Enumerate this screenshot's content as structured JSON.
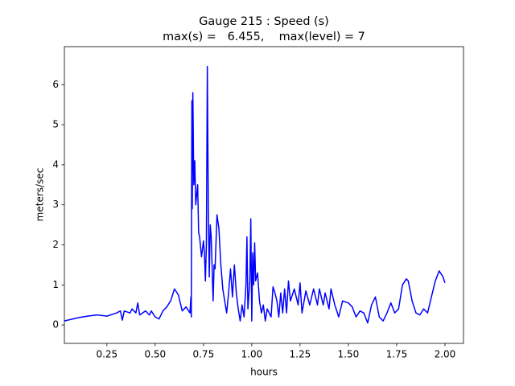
{
  "chart_data": {
    "type": "line",
    "title": "Gauge 215 : Speed (s)",
    "subtitle": "max(s) =   6.455,    max(level) = 7",
    "x_label": "hours",
    "y_label": "meters/sec",
    "color": "#0000ff",
    "x": [
      0.03,
      0.1,
      0.15,
      0.2,
      0.25,
      0.3,
      0.32,
      0.33,
      0.34,
      0.37,
      0.38,
      0.4,
      0.41,
      0.42,
      0.45,
      0.47,
      0.48,
      0.5,
      0.52,
      0.54,
      0.56,
      0.58,
      0.6,
      0.62,
      0.64,
      0.66,
      0.68,
      0.685,
      0.687,
      0.69,
      0.692,
      0.695,
      0.7,
      0.705,
      0.71,
      0.72,
      0.725,
      0.73,
      0.74,
      0.75,
      0.755,
      0.76,
      0.765,
      0.77,
      0.775,
      0.78,
      0.785,
      0.79,
      0.8,
      0.805,
      0.81,
      0.82,
      0.83,
      0.84,
      0.85,
      0.86,
      0.87,
      0.88,
      0.89,
      0.9,
      0.91,
      0.92,
      0.93,
      0.94,
      0.95,
      0.96,
      0.97,
      0.975,
      0.98,
      0.99,
      0.995,
      1.0,
      1.005,
      1.01,
      1.015,
      1.02,
      1.03,
      1.04,
      1.05,
      1.06,
      1.07,
      1.08,
      1.1,
      1.11,
      1.12,
      1.13,
      1.14,
      1.15,
      1.16,
      1.17,
      1.18,
      1.19,
      1.2,
      1.22,
      1.24,
      1.25,
      1.26,
      1.28,
      1.3,
      1.32,
      1.34,
      1.35,
      1.37,
      1.38,
      1.4,
      1.41,
      1.43,
      1.45,
      1.47,
      1.5,
      1.52,
      1.54,
      1.56,
      1.58,
      1.6,
      1.62,
      1.64,
      1.66,
      1.68,
      1.7,
      1.72,
      1.74,
      1.76,
      1.78,
      1.8,
      1.81,
      1.83,
      1.85,
      1.87,
      1.89,
      1.91,
      1.93,
      1.95,
      1.97,
      1.99,
      2.0
    ],
    "values": [
      0.1,
      0.18,
      0.22,
      0.25,
      0.22,
      0.3,
      0.35,
      0.12,
      0.35,
      0.3,
      0.4,
      0.3,
      0.55,
      0.25,
      0.35,
      0.25,
      0.35,
      0.2,
      0.15,
      0.35,
      0.45,
      0.6,
      0.9,
      0.75,
      0.35,
      0.45,
      0.3,
      0.7,
      0.2,
      5.6,
      2.9,
      5.8,
      3.5,
      4.1,
      3.0,
      3.5,
      2.3,
      2.2,
      1.7,
      2.1,
      1.8,
      1.1,
      2.0,
      6.455,
      3.0,
      1.2,
      2.5,
      2.2,
      0.6,
      1.5,
      1.4,
      2.75,
      2.4,
      1.5,
      0.9,
      0.6,
      0.3,
      0.8,
      1.4,
      0.7,
      1.5,
      0.8,
      0.4,
      0.1,
      0.5,
      0.2,
      1.0,
      2.2,
      0.4,
      1.1,
      2.65,
      0.1,
      1.8,
      1.0,
      2.05,
      1.1,
      1.3,
      0.6,
      0.3,
      0.5,
      0.1,
      0.4,
      0.2,
      0.95,
      0.8,
      0.6,
      0.2,
      0.8,
      0.3,
      0.9,
      0.3,
      1.1,
      0.6,
      0.9,
      0.5,
      1.05,
      0.3,
      0.85,
      0.5,
      0.9,
      0.5,
      0.9,
      0.5,
      0.8,
      0.4,
      0.9,
      0.5,
      0.2,
      0.6,
      0.55,
      0.45,
      0.2,
      0.35,
      0.3,
      0.05,
      0.5,
      0.7,
      0.2,
      0.1,
      0.3,
      0.55,
      0.3,
      0.4,
      1.0,
      1.15,
      1.1,
      0.6,
      0.3,
      0.25,
      0.4,
      0.3,
      0.7,
      1.1,
      1.35,
      1.2,
      1.05
    ],
    "xlim": [
      0.03,
      2.096
    ],
    "ylim": [
      -0.46,
      6.95
    ],
    "xticks": [
      0.25,
      {
        "value": 0.5,
        "label": "0.50"
      },
      0.75,
      {
        "value": 1.0,
        "label": "1.00"
      },
      1.25,
      {
        "value": 1.5,
        "label": "1.50"
      },
      1.75,
      {
        "value": 2.0,
        "label": "2.00"
      }
    ],
    "yticks": [
      0,
      1,
      2,
      3,
      4,
      5,
      6
    ]
  }
}
